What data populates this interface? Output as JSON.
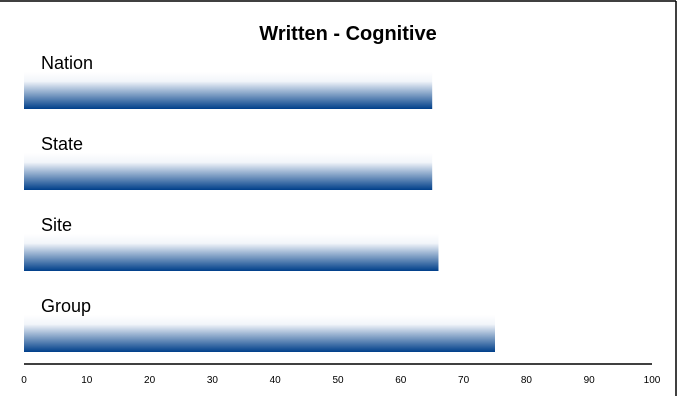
{
  "chart_data": {
    "type": "bar",
    "orientation": "horizontal",
    "title": "Written - Cognitive",
    "xlabel": "",
    "ylabel": "",
    "categories": [
      "Nation",
      "State",
      "Site",
      "Group"
    ],
    "values": [
      65,
      65,
      66,
      75
    ],
    "xlim": [
      0,
      100
    ],
    "x_ticks": [
      "0",
      "10",
      "20",
      "30",
      "40",
      "50",
      "60",
      "70",
      "80",
      "90",
      "100"
    ],
    "grid": false,
    "legend": "none",
    "bar_color_top": "#ffffff",
    "bar_color_bottom": "#003f8a"
  }
}
